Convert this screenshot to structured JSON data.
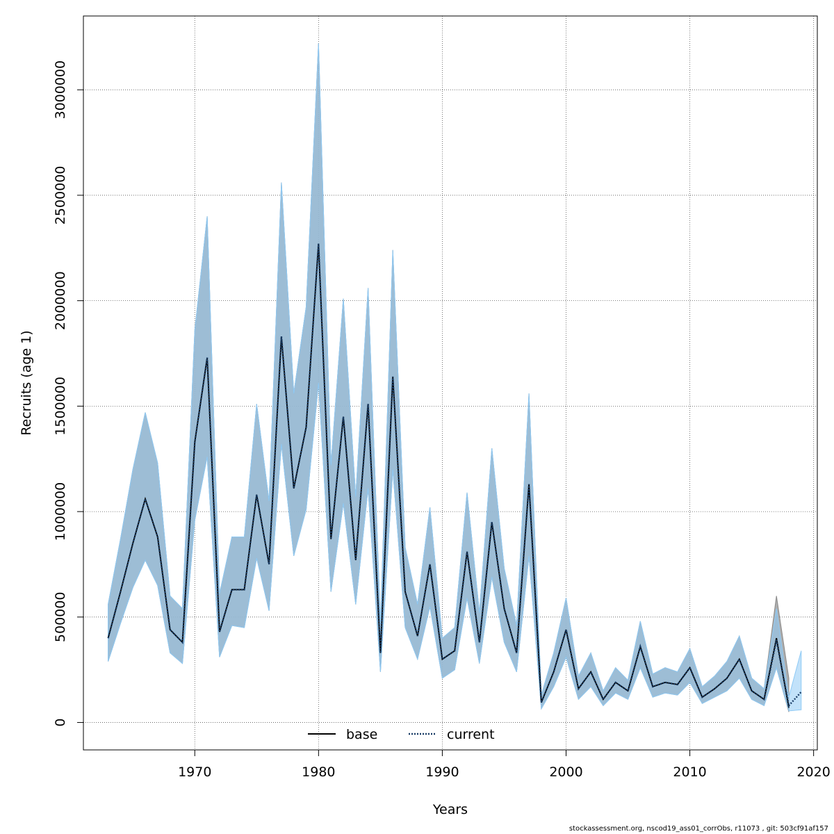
{
  "chart_data": {
    "type": "line",
    "xlabel": "Years",
    "ylabel": "Recruits (age 1)",
    "xlim": [
      1961,
      2020.3
    ],
    "ylim": [
      -130000,
      3350000
    ],
    "x_ticks": [
      "1970",
      "1980",
      "1990",
      "2000",
      "2010",
      "2020"
    ],
    "y_ticks": [
      "0",
      "500000",
      "1000000",
      "1500000",
      "2000000",
      "2500000",
      "3000000"
    ],
    "grid": true,
    "legend_placement": "bottom-center",
    "legend": [
      {
        "label": "base",
        "style": "solid",
        "color": "#000000"
      },
      {
        "label": "current",
        "style": "dotted",
        "color": "#1a3d66"
      }
    ],
    "band_colors": {
      "base": "#a0a0a0",
      "current": "#8fcaf5",
      "overlap": "#a2c4d6",
      "edge": "#8a8a8a"
    },
    "series": [
      {
        "name": "base",
        "x": [
          1963,
          1964,
          1965,
          1966,
          1967,
          1968,
          1969,
          1970,
          1971,
          1972,
          1973,
          1974,
          1975,
          1976,
          1977,
          1978,
          1979,
          1980,
          1981,
          1982,
          1983,
          1984,
          1985,
          1986,
          1987,
          1988,
          1989,
          1990,
          1991,
          1992,
          1993,
          1994,
          1995,
          1996,
          1997,
          1998,
          1999,
          2000,
          2001,
          2002,
          2003,
          2004,
          2005,
          2006,
          2007,
          2008,
          2009,
          2010,
          2011,
          2012,
          2013,
          2014,
          2015,
          2016,
          2017,
          2018
        ],
        "values": [
          400000,
          620000,
          850000,
          1060000,
          880000,
          440000,
          380000,
          1330000,
          1730000,
          430000,
          630000,
          630000,
          1080000,
          750000,
          1830000,
          1110000,
          1400000,
          2270000,
          870000,
          1450000,
          770000,
          1510000,
          330000,
          1640000,
          620000,
          410000,
          750000,
          300000,
          340000,
          810000,
          380000,
          950000,
          540000,
          330000,
          1130000,
          95000,
          240000,
          440000,
          160000,
          240000,
          110000,
          190000,
          150000,
          360000,
          170000,
          190000,
          180000,
          260000,
          120000,
          160000,
          210000,
          300000,
          150000,
          110000,
          400000,
          70000
        ],
        "upper": [
          560000,
          870000,
          1200000,
          1470000,
          1230000,
          600000,
          540000,
          1860000,
          2400000,
          610000,
          880000,
          880000,
          1510000,
          1050000,
          2560000,
          1560000,
          1970000,
          3220000,
          1220000,
          2010000,
          1070000,
          2060000,
          470000,
          2240000,
          830000,
          560000,
          1020000,
          400000,
          450000,
          1090000,
          520000,
          1300000,
          730000,
          460000,
          1560000,
          130000,
          330000,
          590000,
          220000,
          330000,
          150000,
          260000,
          200000,
          480000,
          230000,
          260000,
          240000,
          350000,
          170000,
          220000,
          290000,
          410000,
          210000,
          160000,
          600000,
          210000
        ],
        "lower": [
          290000,
          470000,
          640000,
          770000,
          650000,
          330000,
          280000,
          960000,
          1260000,
          310000,
          460000,
          450000,
          780000,
          530000,
          1320000,
          790000,
          1010000,
          1610000,
          620000,
          1040000,
          560000,
          1110000,
          240000,
          1200000,
          450000,
          300000,
          550000,
          210000,
          250000,
          590000,
          280000,
          690000,
          380000,
          240000,
          790000,
          65000,
          170000,
          310000,
          110000,
          170000,
          80000,
          140000,
          110000,
          260000,
          120000,
          140000,
          130000,
          190000,
          90000,
          120000,
          150000,
          210000,
          110000,
          80000,
          260000,
          50000
        ]
      },
      {
        "name": "current",
        "x": [
          1963,
          1964,
          1965,
          1966,
          1967,
          1968,
          1969,
          1970,
          1971,
          1972,
          1973,
          1974,
          1975,
          1976,
          1977,
          1978,
          1979,
          1980,
          1981,
          1982,
          1983,
          1984,
          1985,
          1986,
          1987,
          1988,
          1989,
          1990,
          1991,
          1992,
          1993,
          1994,
          1995,
          1996,
          1997,
          1998,
          1999,
          2000,
          2001,
          2002,
          2003,
          2004,
          2005,
          2006,
          2007,
          2008,
          2009,
          2010,
          2011,
          2012,
          2013,
          2014,
          2015,
          2016,
          2017,
          2018,
          2019
        ],
        "values": [
          400000,
          620000,
          850000,
          1060000,
          880000,
          440000,
          380000,
          1330000,
          1730000,
          430000,
          630000,
          630000,
          1080000,
          750000,
          1830000,
          1110000,
          1400000,
          2270000,
          870000,
          1450000,
          770000,
          1510000,
          330000,
          1640000,
          620000,
          410000,
          750000,
          300000,
          340000,
          810000,
          380000,
          950000,
          540000,
          330000,
          1130000,
          95000,
          240000,
          440000,
          160000,
          240000,
          110000,
          190000,
          150000,
          360000,
          170000,
          190000,
          180000,
          260000,
          120000,
          160000,
          210000,
          300000,
          150000,
          110000,
          390000,
          80000,
          145000
        ],
        "upper": [
          560000,
          870000,
          1200000,
          1470000,
          1230000,
          600000,
          540000,
          1860000,
          2400000,
          610000,
          880000,
          880000,
          1510000,
          1050000,
          2560000,
          1560000,
          1970000,
          3220000,
          1220000,
          2010000,
          1070000,
          2060000,
          470000,
          2240000,
          830000,
          560000,
          1020000,
          400000,
          450000,
          1090000,
          520000,
          1300000,
          730000,
          460000,
          1560000,
          130000,
          330000,
          590000,
          220000,
          330000,
          150000,
          260000,
          200000,
          480000,
          230000,
          260000,
          240000,
          350000,
          170000,
          220000,
          290000,
          410000,
          210000,
          160000,
          540000,
          120000,
          340000
        ],
        "lower": [
          290000,
          470000,
          640000,
          770000,
          650000,
          330000,
          280000,
          960000,
          1260000,
          310000,
          460000,
          450000,
          780000,
          530000,
          1320000,
          790000,
          1010000,
          1610000,
          620000,
          1040000,
          560000,
          1110000,
          240000,
          1200000,
          450000,
          300000,
          550000,
          210000,
          250000,
          590000,
          280000,
          690000,
          380000,
          240000,
          790000,
          65000,
          170000,
          310000,
          110000,
          170000,
          80000,
          140000,
          110000,
          260000,
          120000,
          140000,
          130000,
          190000,
          90000,
          120000,
          150000,
          210000,
          110000,
          80000,
          260000,
          55000,
          60000
        ]
      }
    ]
  },
  "footer": "stockassessment.org, nscod19_ass01_corrObs, r11073 , git: 503cf91af157"
}
